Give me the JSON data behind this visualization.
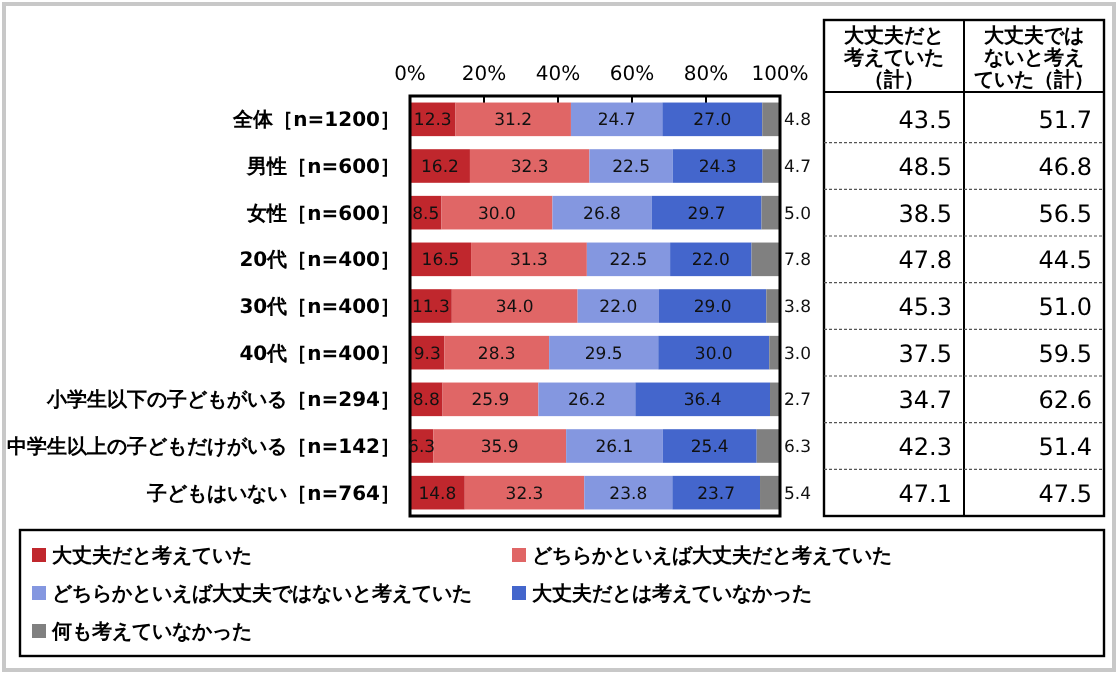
{
  "chart_data": [
    {
      "type": "bar",
      "orientation": "horizontal",
      "stacked": true,
      "legend": "bottom",
      "grid": false,
      "categories": [
        "全体［n=1200］",
        "男性［n=600］",
        "女性［n=600］",
        "20代［n=400］",
        "30代［n=400］",
        "40代［n=400］",
        "小学生以下の子どもがいる［n=294］",
        "中学生以上の子どもだけがいる［n=142］",
        "子どもはいない［n=764］"
      ],
      "xlim": [
        0,
        100
      ],
      "xticks": [
        {
          "value": 0,
          "label": "0%"
        },
        {
          "value": 20,
          "label": "20%"
        },
        {
          "value": 40,
          "label": "40%"
        },
        {
          "value": 60,
          "label": "60%"
        },
        {
          "value": 80,
          "label": "80%"
        },
        {
          "value": 100,
          "label": "100%"
        }
      ],
      "series": [
        {
          "name": "大丈夫だと考えていた",
          "color": "#c0272d",
          "values": [
            12.3,
            16.2,
            8.5,
            16.5,
            11.3,
            9.3,
            8.8,
            6.3,
            14.8
          ],
          "value_labels": [
            "12.3",
            "16.2",
            "8.5",
            "16.5",
            "11.3",
            "9.3",
            "8.8",
            "6.3",
            "14.8"
          ]
        },
        {
          "name": "どちらかといえば大丈夫だと考えていた",
          "color": "#e06666",
          "values": [
            31.2,
            32.3,
            30.0,
            31.3,
            34.0,
            28.3,
            25.9,
            35.9,
            32.3
          ],
          "value_labels": [
            "31.2",
            "32.3",
            "30.0",
            "31.3",
            "34.0",
            "28.3",
            "25.9",
            "35.9",
            "32.3"
          ]
        },
        {
          "name": "どちらかといえば大丈夫ではないと考えていた",
          "color": "#8497e0",
          "values": [
            24.7,
            22.5,
            26.8,
            22.5,
            22.0,
            29.5,
            26.2,
            26.1,
            23.8
          ],
          "value_labels": [
            "24.7",
            "22.5",
            "26.8",
            "22.5",
            "22.0",
            "29.5",
            "26.2",
            "26.1",
            "23.8"
          ]
        },
        {
          "name": "大丈夫だとは考えていなかった",
          "color": "#4466cc",
          "values": [
            27.0,
            24.3,
            29.7,
            22.0,
            29.0,
            30.0,
            36.4,
            25.4,
            23.7
          ],
          "value_labels": [
            "27.0",
            "24.3",
            "29.7",
            "22.0",
            "29.0",
            "30.0",
            "36.4",
            "25.4",
            "23.7"
          ]
        },
        {
          "name": "何も考えていなかった",
          "color": "#808080",
          "values": [
            4.8,
            4.7,
            5.0,
            7.8,
            3.8,
            3.0,
            2.7,
            6.3,
            5.4
          ],
          "value_labels": [
            "4.8",
            "4.7",
            "5.0",
            "7.8",
            "3.8",
            "3.0",
            "2.7",
            "6.3",
            "5.4"
          ]
        }
      ]
    },
    {
      "type": "other",
      "categories": [
        "大丈夫だと考えていた（計）",
        "大丈夫ではないと考えていた（計）"
      ],
      "annotations": [
        "43.5",
        "51.7",
        "48.5",
        "46.8",
        "38.5",
        "56.5",
        "47.8",
        "44.5",
        "45.3",
        "51.0",
        "37.5",
        "59.5",
        "34.7",
        "62.6",
        "42.3",
        "51.4",
        "47.1",
        "47.5"
      ]
    }
  ]
}
